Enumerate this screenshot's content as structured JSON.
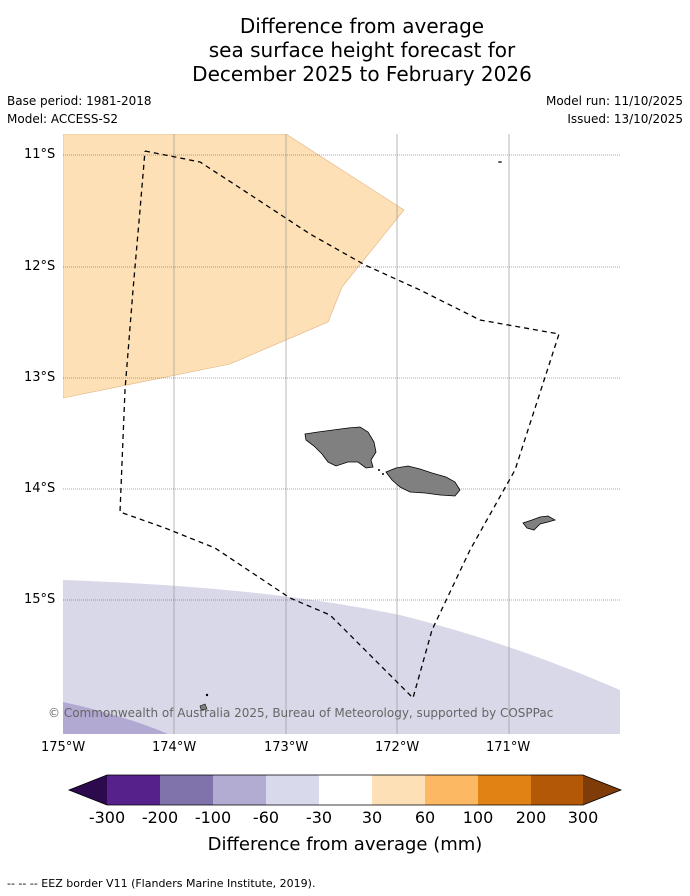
{
  "title": {
    "line1": "Difference from average",
    "line2": "sea surface height forecast for",
    "line3": "December 2025 to February 2026"
  },
  "meta": {
    "base_period": "Base period: 1981-2018",
    "model": "Model: ACCESS-S2",
    "model_run": "Model run: 11/10/2025",
    "issued": "Issued: 13/10/2025"
  },
  "map": {
    "lat_ticks": [
      "11°S",
      "12°S",
      "13°S",
      "14°S",
      "15°S"
    ],
    "lon_ticks": [
      "175°W",
      "174°W",
      "173°W",
      "172°W",
      "171°W"
    ],
    "credit": "© Commonwealth of Australia 2025, Bureau of Meteorology, supported by COSPPac",
    "colors": {
      "anomaly_30_60": "#fde0b6",
      "anomaly_neg30_neg60": "#d8d8e8",
      "anomaly_neg60_neg100": "#b1a9d1",
      "land": "#808080",
      "grid": "#999999"
    }
  },
  "colorbar": {
    "labels": [
      "-300",
      "-200",
      "-100",
      "-60",
      "-30",
      "30",
      "60",
      "100",
      "200",
      "300"
    ],
    "colors": [
      "#2d0a4e",
      "#56218a",
      "#8073ac",
      "#b2abd2",
      "#d8daeb",
      "#ffffff",
      "#fee0b6",
      "#fdb863",
      "#e08214",
      "#b35806",
      "#7f3b08"
    ],
    "title": "Difference from average (mm)"
  },
  "footer": "-- -- -- EEZ border V11 (Flanders Marine Institute, 2019)."
}
